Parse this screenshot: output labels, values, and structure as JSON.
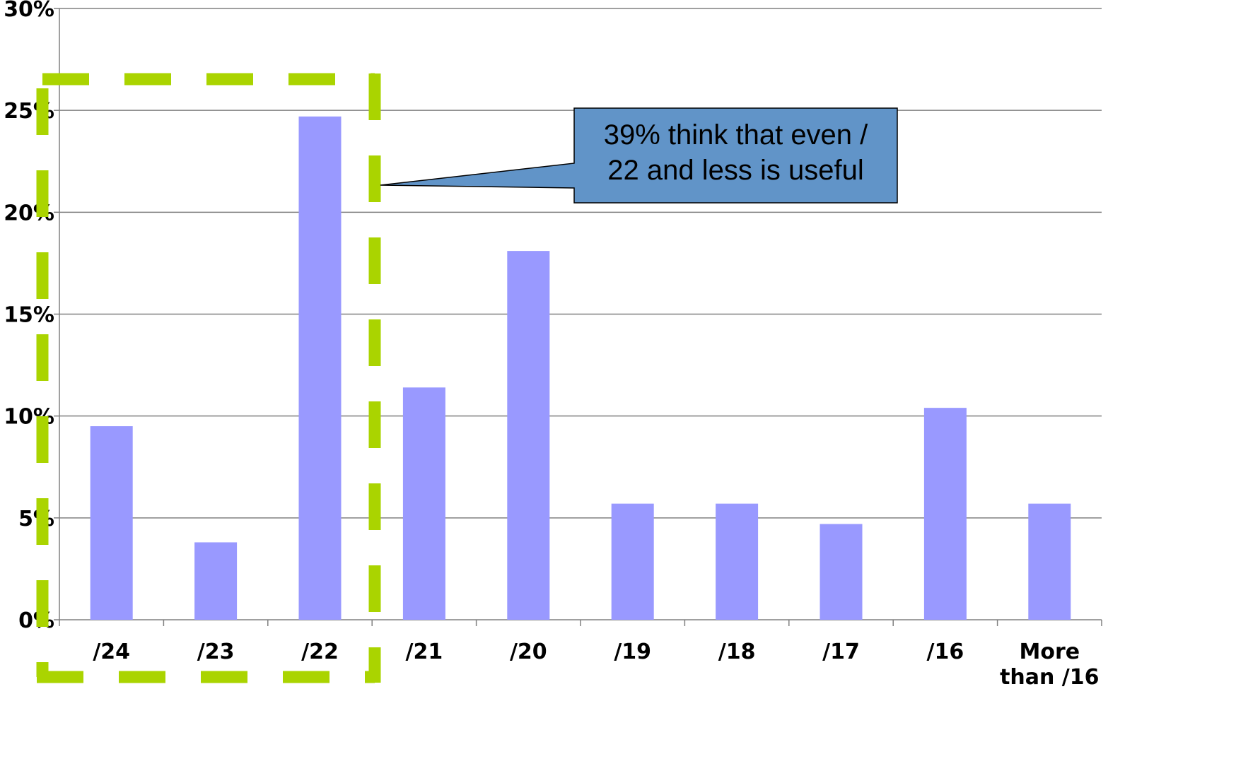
{
  "chart_data": {
    "type": "bar",
    "title": "",
    "xlabel": "",
    "ylabel": "",
    "categories": [
      "/24",
      "/23",
      "/22",
      "/21",
      "/20",
      "/19",
      "/18",
      "/17",
      "/16",
      "More than /16"
    ],
    "values": [
      9.5,
      3.8,
      24.7,
      11.4,
      18.1,
      5.7,
      5.7,
      4.7,
      10.4,
      5.7
    ],
    "ylim": [
      0,
      30
    ],
    "yticks": [
      0,
      5,
      10,
      15,
      20,
      25,
      30
    ],
    "ytick_labels": [
      "0%",
      "5%",
      "10%",
      "15%",
      "20%",
      "25%",
      "30%"
    ],
    "grid": true,
    "colors": {
      "bar": "#9999ff",
      "highlight_dash": "#aad400",
      "callout_fill": "#6194c8",
      "callout_border": "#000000",
      "gridline": "#808080"
    },
    "annotation": {
      "lines": [
        "39% think that even /",
        "22 and less is useful"
      ],
      "highlight_categories": [
        "/24",
        "/23",
        "/22"
      ]
    }
  }
}
